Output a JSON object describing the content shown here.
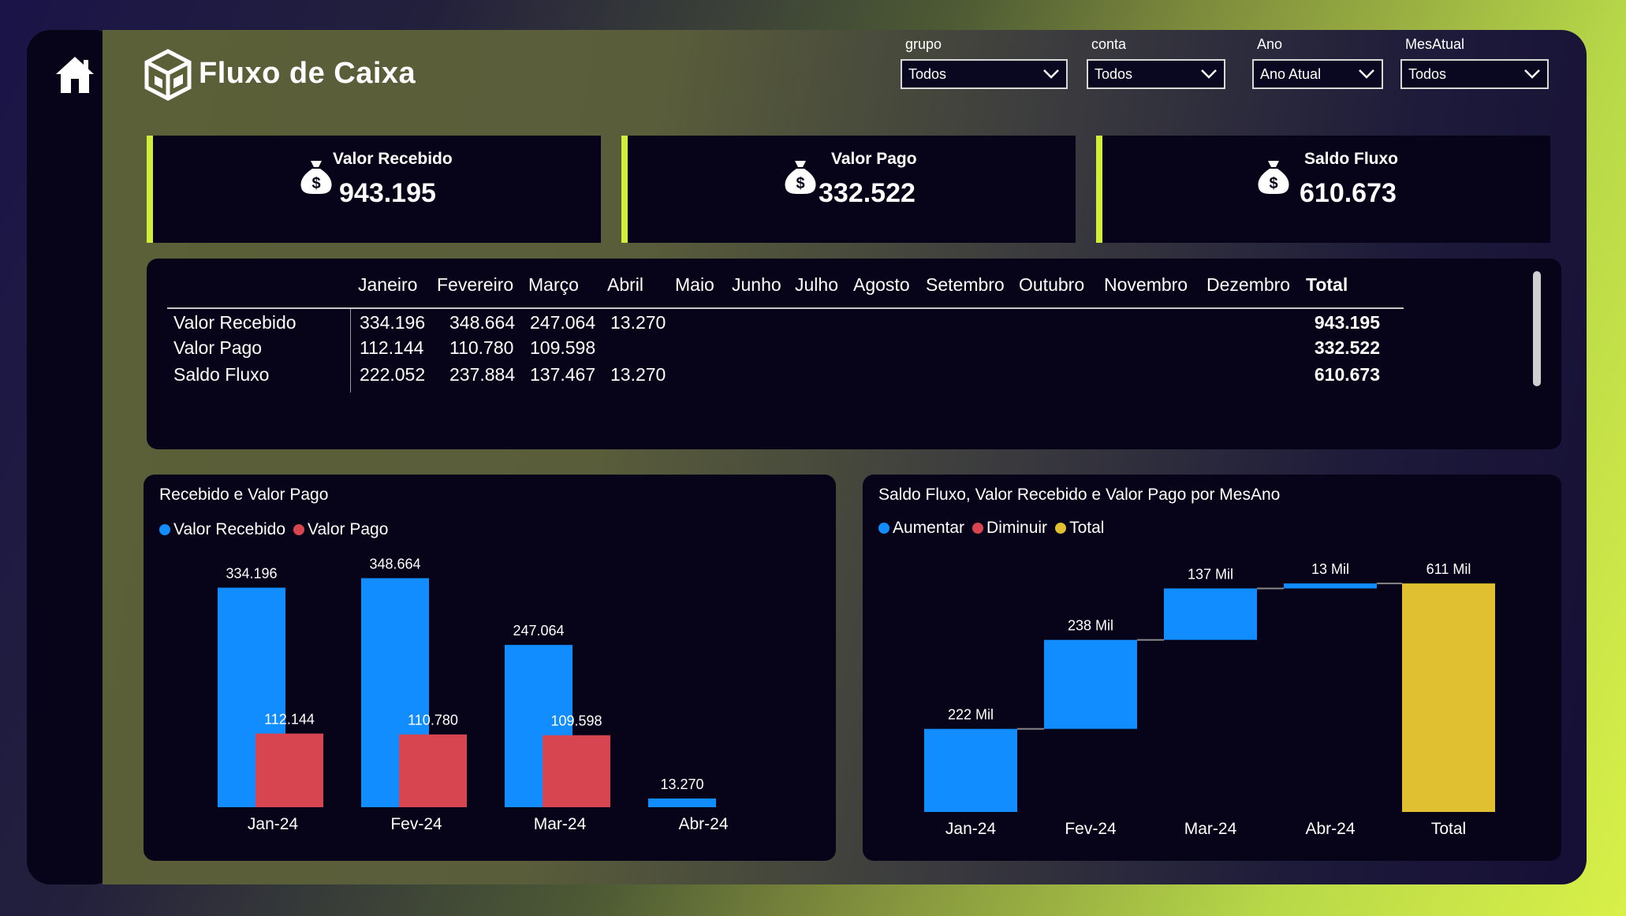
{
  "header": {
    "title": "Fluxo de Caixa"
  },
  "slicers": [
    {
      "label": "grupo",
      "value": "Todos"
    },
    {
      "label": "conta",
      "value": "Todos"
    },
    {
      "label": "Ano",
      "value": "Ano Atual"
    },
    {
      "label": "MesAtual",
      "value": "Todos"
    }
  ],
  "kpis": [
    {
      "label": "Valor Recebido",
      "value": "943.195"
    },
    {
      "label": "Valor Pago",
      "value": "332.522"
    },
    {
      "label": "Saldo Fluxo",
      "value": "610.673"
    }
  ],
  "matrix": {
    "columns": [
      "Janeiro",
      "Fevereiro",
      "Março",
      "Abril",
      "Maio",
      "Junho",
      "Julho",
      "Agosto",
      "Setembro",
      "Outubro",
      "Novembro",
      "Dezembro",
      "Total"
    ],
    "rows": [
      {
        "label": "Valor Recebido",
        "values": [
          "334.196",
          "348.664",
          "247.064",
          "13.270"
        ],
        "total": "943.195"
      },
      {
        "label": "Valor Pago",
        "values": [
          "112.144",
          "110.780",
          "109.598"
        ],
        "total": "332.522"
      },
      {
        "label": "Saldo Fluxo",
        "values": [
          "222.052",
          "237.884",
          "137.467",
          "13.270"
        ],
        "total": "610.673"
      }
    ]
  },
  "colors": {
    "accent": "#d2ed3c",
    "recebido": "#118dff",
    "pago": "#d64550",
    "total": "#e0c030",
    "panel": "#07041a"
  },
  "chart_data": [
    {
      "type": "bar",
      "title": "Recebido e Valor Pago",
      "categories": [
        "Jan-24",
        "Fev-24",
        "Mar-24",
        "Abr-24"
      ],
      "series": [
        {
          "name": "Valor Recebido",
          "values": [
            334196,
            348664,
            247064,
            13270
          ],
          "labels": [
            "334.196",
            "348.664",
            "247.064",
            "13.270"
          ]
        },
        {
          "name": "Valor Pago",
          "values": [
            112144,
            110780,
            109598,
            null
          ],
          "labels": [
            "112.144",
            "110.780",
            "109.598",
            ""
          ]
        }
      ],
      "legend": "top-left"
    },
    {
      "type": "bar",
      "subtype": "waterfall",
      "title": "Saldo Fluxo, Valor Recebido e Valor Pago por MesAno",
      "legend_items": [
        "Aumentar",
        "Diminuir",
        "Total"
      ],
      "categories": [
        "Jan-24",
        "Fev-24",
        "Mar-24",
        "Abr-24",
        "Total"
      ],
      "values": [
        222052,
        237884,
        137467,
        13270,
        610673
      ],
      "kinds": [
        "increase",
        "increase",
        "increase",
        "increase",
        "total"
      ],
      "labels": [
        "222 Mil",
        "238 Mil",
        "137 Mil",
        "13 Mil",
        "611 Mil"
      ],
      "legend": "top-left"
    }
  ]
}
